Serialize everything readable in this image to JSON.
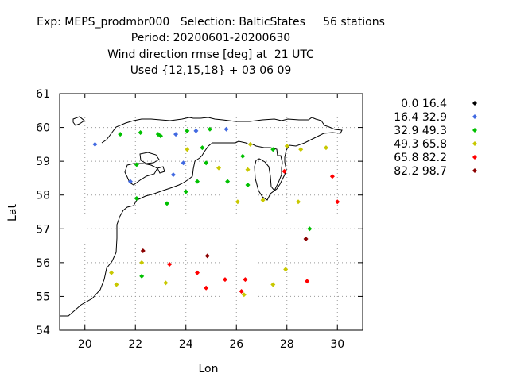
{
  "chart_data": {
    "type": "scatter",
    "title_lines": [
      "Exp: MEPS_prodmbr000   Selection: BalticStates     56 stations",
      "Period: 20200601-20200630",
      "Wind direction rmse [deg] at  21 UTC",
      "Used {12,15,18} + 03 06 09"
    ],
    "xlabel": "Lon",
    "ylabel": "Lat",
    "xlim": [
      19,
      31
    ],
    "ylim": [
      54,
      61
    ],
    "xticks": [
      20,
      22,
      24,
      26,
      28,
      30
    ],
    "yticks": [
      54,
      55,
      56,
      57,
      58,
      59,
      60,
      61
    ],
    "grid": true,
    "legend_position": "right",
    "series": [
      {
        "name": "0.0 16.4",
        "color": "#000000",
        "points": []
      },
      {
        "name": "16.4 32.9",
        "color": "#4169e1",
        "points": [
          {
            "x": 20.4,
            "y": 59.5
          },
          {
            "x": 21.8,
            "y": 58.4
          },
          {
            "x": 23.6,
            "y": 59.8
          },
          {
            "x": 24.4,
            "y": 59.9
          },
          {
            "x": 25.6,
            "y": 59.95
          },
          {
            "x": 23.9,
            "y": 58.95
          },
          {
            "x": 23.5,
            "y": 58.6
          }
        ]
      },
      {
        "name": "32.9 49.3",
        "color": "#00c000",
        "points": [
          {
            "x": 21.4,
            "y": 59.8
          },
          {
            "x": 22.2,
            "y": 59.85
          },
          {
            "x": 22.9,
            "y": 59.8
          },
          {
            "x": 23.0,
            "y": 59.75
          },
          {
            "x": 24.05,
            "y": 59.9
          },
          {
            "x": 24.95,
            "y": 59.95
          },
          {
            "x": 24.65,
            "y": 59.4
          },
          {
            "x": 26.25,
            "y": 59.15
          },
          {
            "x": 27.45,
            "y": 59.35
          },
          {
            "x": 22.05,
            "y": 58.9
          },
          {
            "x": 24.8,
            "y": 58.95
          },
          {
            "x": 24.45,
            "y": 58.4
          },
          {
            "x": 25.65,
            "y": 58.4
          },
          {
            "x": 26.45,
            "y": 58.3
          },
          {
            "x": 24.0,
            "y": 58.1
          },
          {
            "x": 22.05,
            "y": 57.9
          },
          {
            "x": 23.25,
            "y": 57.75
          },
          {
            "x": 28.9,
            "y": 57.0
          },
          {
            "x": 22.25,
            "y": 55.6
          }
        ]
      },
      {
        "name": "49.3 65.8",
        "color": "#c8c800",
        "points": [
          {
            "x": 24.05,
            "y": 59.35
          },
          {
            "x": 26.55,
            "y": 59.5
          },
          {
            "x": 28.0,
            "y": 59.45
          },
          {
            "x": 28.55,
            "y": 59.35
          },
          {
            "x": 29.55,
            "y": 59.4
          },
          {
            "x": 25.3,
            "y": 58.8
          },
          {
            "x": 26.45,
            "y": 58.75
          },
          {
            "x": 26.05,
            "y": 57.8
          },
          {
            "x": 27.05,
            "y": 57.85
          },
          {
            "x": 28.45,
            "y": 57.8
          },
          {
            "x": 22.25,
            "y": 56.0
          },
          {
            "x": 21.05,
            "y": 55.7
          },
          {
            "x": 21.25,
            "y": 55.35
          },
          {
            "x": 23.2,
            "y": 55.4
          },
          {
            "x": 27.45,
            "y": 55.35
          },
          {
            "x": 27.95,
            "y": 55.8
          },
          {
            "x": 26.3,
            "y": 55.05
          }
        ]
      },
      {
        "name": "65.8 82.2",
        "color": "#ff0000",
        "points": [
          {
            "x": 27.9,
            "y": 58.7
          },
          {
            "x": 29.8,
            "y": 58.55
          },
          {
            "x": 30.0,
            "y": 57.8
          },
          {
            "x": 23.35,
            "y": 55.95
          },
          {
            "x": 24.45,
            "y": 55.7
          },
          {
            "x": 25.55,
            "y": 55.5
          },
          {
            "x": 26.35,
            "y": 55.5
          },
          {
            "x": 28.8,
            "y": 55.45
          },
          {
            "x": 24.8,
            "y": 55.25
          },
          {
            "x": 26.2,
            "y": 55.15
          }
        ]
      },
      {
        "name": "82.2 98.7",
        "color": "#8b0000",
        "points": [
          {
            "x": 22.3,
            "y": 56.35
          },
          {
            "x": 24.85,
            "y": 56.2
          },
          {
            "x": 28.75,
            "y": 56.7
          }
        ]
      }
    ]
  }
}
